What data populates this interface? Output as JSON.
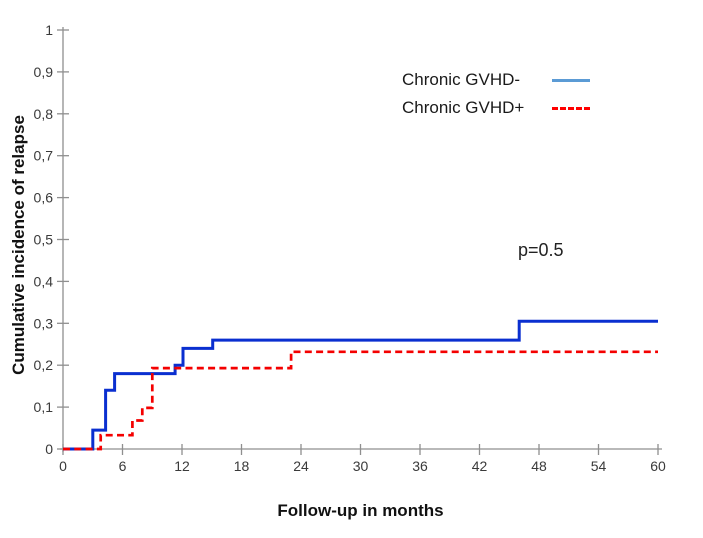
{
  "chart_data": {
    "type": "line",
    "variant": "step-cumulative-incidence",
    "title": "",
    "xlabel": "Follow-up in months",
    "ylabel": "Cumulative incidence of relapse",
    "xlim": [
      0,
      60
    ],
    "ylim": [
      0,
      1
    ],
    "x_ticks": [
      0,
      6,
      12,
      18,
      24,
      30,
      36,
      42,
      48,
      54,
      60
    ],
    "y_tick_values": [
      0,
      0.1,
      0.2,
      0.3,
      0.4,
      0.5,
      0.6,
      0.7,
      0.8,
      0.9,
      1
    ],
    "y_tick_labels": [
      "0",
      "0,1",
      "0,2",
      "0,3",
      "0,4",
      "0,5",
      "0,6",
      "0,7",
      "0,8",
      "0,9",
      "1"
    ],
    "grid": false,
    "legend_position": "inside-upper-right",
    "axis_color": "#8f8f8f",
    "tick_label_color": "#3a3a3a",
    "series": [
      {
        "name": "Chronic GVHD-",
        "color": "#0a2fd0",
        "line_style": "solid",
        "line_width": 3,
        "points": [
          [
            0,
            0
          ],
          [
            3,
            0
          ],
          [
            3,
            0.045
          ],
          [
            4.3,
            0.045
          ],
          [
            4.3,
            0.14
          ],
          [
            5.2,
            0.14
          ],
          [
            5.2,
            0.18
          ],
          [
            11.3,
            0.18
          ],
          [
            11.3,
            0.2
          ],
          [
            12.1,
            0.2
          ],
          [
            12.1,
            0.24
          ],
          [
            15.1,
            0.24
          ],
          [
            15.1,
            0.26
          ],
          [
            46,
            0.26
          ],
          [
            46,
            0.305
          ],
          [
            60,
            0.305
          ]
        ]
      },
      {
        "name": "Chronic GVHD+",
        "color": "#f40000",
        "line_style": "dashed",
        "line_width": 2.7,
        "points": [
          [
            0,
            0
          ],
          [
            3.8,
            0
          ],
          [
            3.8,
            0.033
          ],
          [
            7,
            0.033
          ],
          [
            7,
            0.068
          ],
          [
            8,
            0.068
          ],
          [
            8,
            0.098
          ],
          [
            9,
            0.098
          ],
          [
            9,
            0.193
          ],
          [
            23,
            0.193
          ],
          [
            23,
            0.232
          ],
          [
            60,
            0.232
          ]
        ]
      }
    ],
    "annotations": [
      {
        "text": "p=0.5",
        "x_month": 48.5,
        "y_value": 0.46
      }
    ]
  },
  "legend": {
    "items": [
      {
        "label": "Chronic GVHD-",
        "color": "#5b9bd5",
        "line_style": "solid"
      },
      {
        "label": "Chronic GVHD+",
        "color": "#ff0000",
        "line_style": "dashed"
      }
    ]
  }
}
